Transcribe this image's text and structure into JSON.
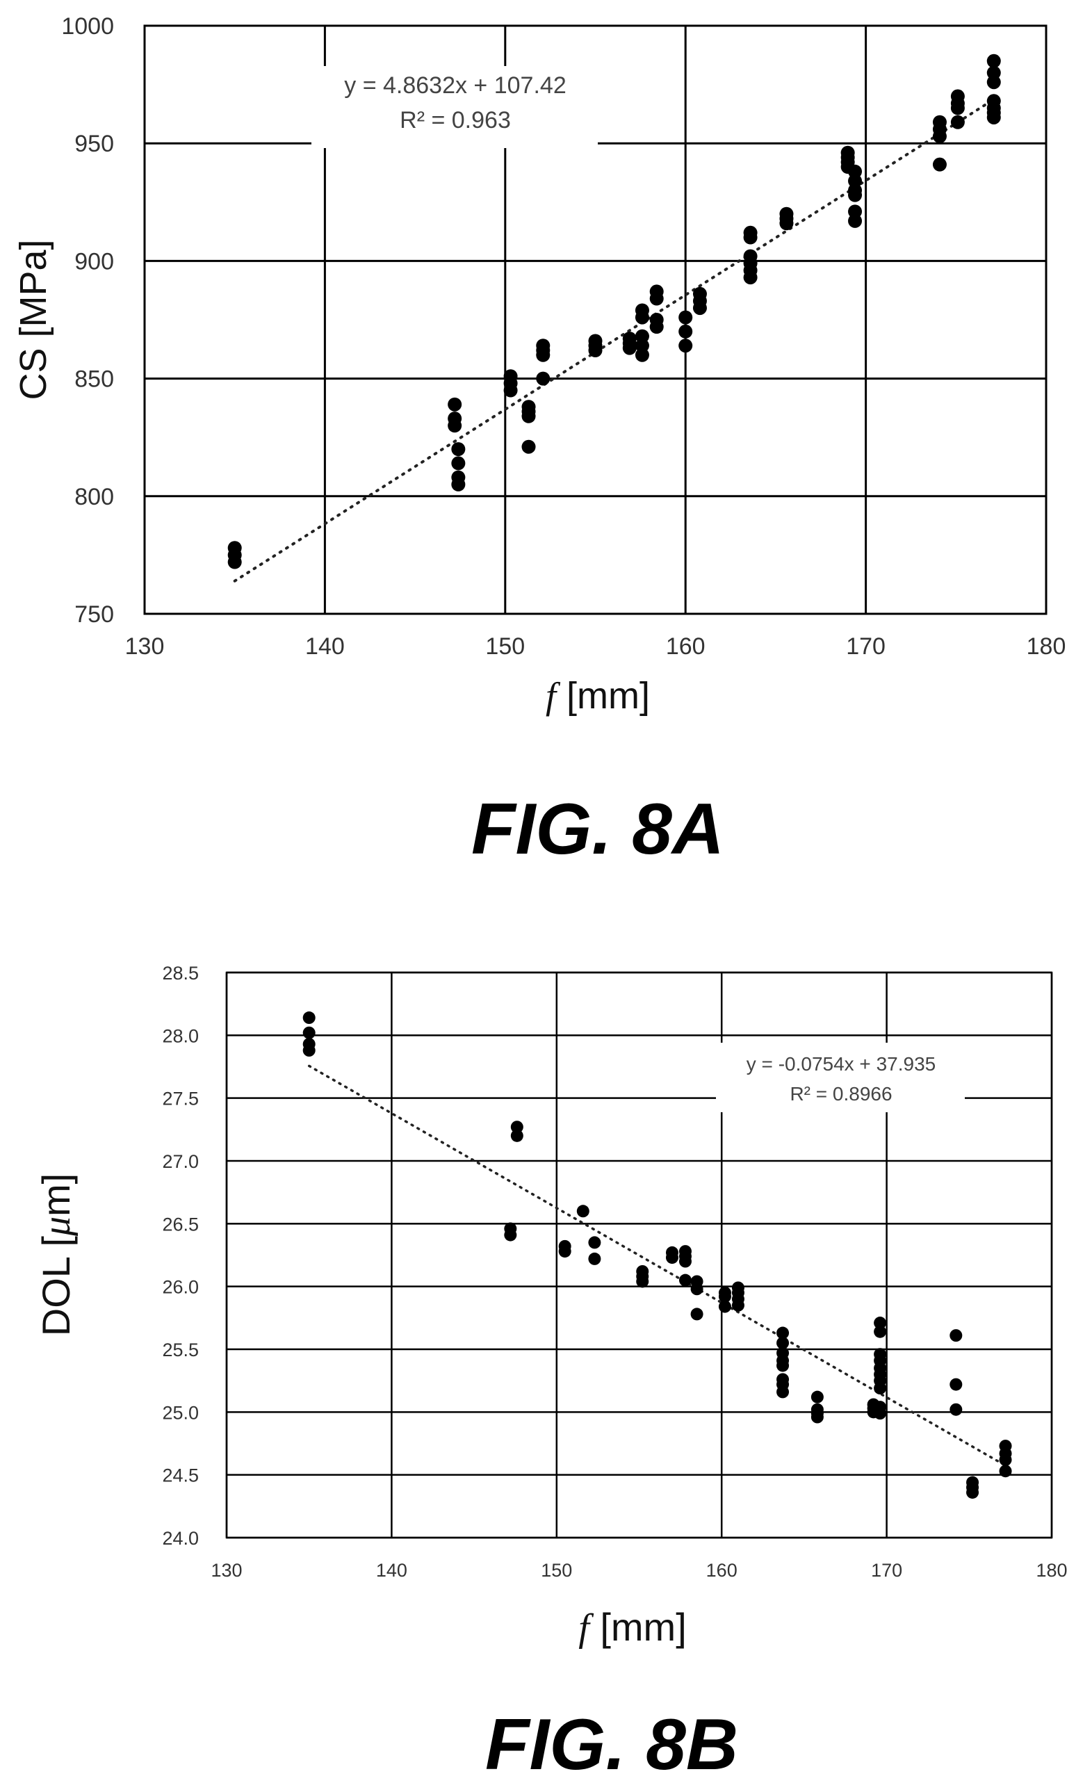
{
  "chart_data": [
    {
      "type": "scatter",
      "caption": "FIG. 8A",
      "xlabel_var": "f",
      "xlabel_unit": " [mm]",
      "ylabel": "CS [MPa]",
      "xlim": [
        130,
        180
      ],
      "ylim": [
        750,
        1000
      ],
      "xticks": [
        130,
        140,
        150,
        160,
        170,
        180
      ],
      "yticks": [
        750,
        800,
        850,
        900,
        950,
        1000
      ],
      "grid": true,
      "trendline": {
        "style": "dotted",
        "slope": 4.8632,
        "intercept": 107.42,
        "x_range": [
          135,
          177
        ],
        "equation": "y = 4.8632x + 107.42",
        "r2": "R² = 0.963"
      },
      "points": [
        [
          135,
          778
        ],
        [
          135,
          775
        ],
        [
          135,
          772
        ],
        [
          147.2,
          839
        ],
        [
          147.2,
          833
        ],
        [
          147.2,
          830
        ],
        [
          147.4,
          820
        ],
        [
          147.4,
          814
        ],
        [
          147.4,
          808
        ],
        [
          147.4,
          805
        ],
        [
          150.3,
          851
        ],
        [
          150.3,
          848
        ],
        [
          150.3,
          845
        ],
        [
          151.3,
          838
        ],
        [
          151.3,
          836
        ],
        [
          151.3,
          834
        ],
        [
          151.3,
          821
        ],
        [
          152.1,
          864
        ],
        [
          152.1,
          862
        ],
        [
          152.1,
          860
        ],
        [
          152.1,
          850
        ],
        [
          155,
          866
        ],
        [
          155,
          864
        ],
        [
          155,
          862
        ],
        [
          156.9,
          867
        ],
        [
          156.9,
          865
        ],
        [
          156.9,
          863
        ],
        [
          157.6,
          879
        ],
        [
          157.6,
          876
        ],
        [
          157.6,
          868
        ],
        [
          157.6,
          864
        ],
        [
          157.6,
          860
        ],
        [
          158.4,
          887
        ],
        [
          158.4,
          884
        ],
        [
          158.4,
          875
        ],
        [
          158.4,
          872
        ],
        [
          160,
          876
        ],
        [
          160,
          870
        ],
        [
          160,
          864
        ],
        [
          160.8,
          886
        ],
        [
          160.8,
          883
        ],
        [
          160.8,
          880
        ],
        [
          163.6,
          912
        ],
        [
          163.6,
          910
        ],
        [
          163.6,
          902
        ],
        [
          163.6,
          899
        ],
        [
          163.6,
          896
        ],
        [
          163.6,
          893
        ],
        [
          165.6,
          920
        ],
        [
          165.6,
          918
        ],
        [
          165.6,
          916
        ],
        [
          169,
          946
        ],
        [
          169,
          944
        ],
        [
          169,
          942
        ],
        [
          169,
          940
        ],
        [
          169.4,
          938
        ],
        [
          169.4,
          934
        ],
        [
          169.4,
          930
        ],
        [
          169.4,
          928
        ],
        [
          169.4,
          921
        ],
        [
          169.4,
          917
        ],
        [
          174.1,
          959
        ],
        [
          174.1,
          956
        ],
        [
          174.1,
          953
        ],
        [
          174.1,
          941
        ],
        [
          175.1,
          970
        ],
        [
          175.1,
          967
        ],
        [
          175.1,
          965
        ],
        [
          175.1,
          959
        ],
        [
          177.1,
          985
        ],
        [
          177.1,
          980
        ],
        [
          177.1,
          976
        ],
        [
          177.1,
          968
        ],
        [
          177.1,
          965
        ],
        [
          177.1,
          963
        ],
        [
          177.1,
          961
        ]
      ]
    },
    {
      "type": "scatter",
      "caption": "FIG. 8B",
      "xlabel_var": "f",
      "xlabel_unit": " [mm]",
      "ylabel_pre": "DOL [",
      "ylabel_var": "μ",
      "ylabel_post": "m]",
      "xlim": [
        130,
        180
      ],
      "ylim": [
        24.0,
        28.5
      ],
      "xticks": [
        130,
        140,
        150,
        160,
        170,
        180
      ],
      "yticks": [
        "24.0",
        "24.5",
        "25.0",
        "25.5",
        "26.0",
        "26.5",
        "27.0",
        "27.5",
        "28.0",
        "28.5"
      ],
      "grid": true,
      "trendline": {
        "style": "dotted",
        "slope": -0.0754,
        "intercept": 37.935,
        "x_range": [
          135,
          177
        ],
        "equation": "y = -0.0754x + 37.935",
        "r2": "R² = 0.8966"
      },
      "points": [
        [
          135,
          28.14
        ],
        [
          135,
          28.02
        ],
        [
          135,
          27.93
        ],
        [
          135,
          27.88
        ],
        [
          147.2,
          26.46
        ],
        [
          147.2,
          26.41
        ],
        [
          147.6,
          27.27
        ],
        [
          147.6,
          27.2
        ],
        [
          150.5,
          26.32
        ],
        [
          150.5,
          26.28
        ],
        [
          151.6,
          26.6
        ],
        [
          152.3,
          26.35
        ],
        [
          152.3,
          26.22
        ],
        [
          155.2,
          26.12
        ],
        [
          155.2,
          26.08
        ],
        [
          155.2,
          26.04
        ],
        [
          157,
          26.27
        ],
        [
          157,
          26.23
        ],
        [
          157.8,
          26.28
        ],
        [
          157.8,
          26.24
        ],
        [
          157.8,
          26.2
        ],
        [
          157.8,
          26.05
        ],
        [
          158.5,
          26.04
        ],
        [
          158.5,
          25.98
        ],
        [
          158.5,
          25.78
        ],
        [
          160.2,
          25.95
        ],
        [
          160.2,
          25.92
        ],
        [
          160.2,
          25.84
        ],
        [
          161,
          25.99
        ],
        [
          161,
          25.95
        ],
        [
          161,
          25.9
        ],
        [
          161,
          25.85
        ],
        [
          163.7,
          25.63
        ],
        [
          163.7,
          25.55
        ],
        [
          163.7,
          25.47
        ],
        [
          163.7,
          25.41
        ],
        [
          163.7,
          25.37
        ],
        [
          163.7,
          25.26
        ],
        [
          163.7,
          25.22
        ],
        [
          163.7,
          25.16
        ],
        [
          165.8,
          25.12
        ],
        [
          165.8,
          25.02
        ],
        [
          165.8,
          24.99
        ],
        [
          165.8,
          24.96
        ],
        [
          169.2,
          25.06
        ],
        [
          169.2,
          25.03
        ],
        [
          169.2,
          25.0
        ],
        [
          169.6,
          25.71
        ],
        [
          169.6,
          25.64
        ],
        [
          169.6,
          25.46
        ],
        [
          169.6,
          25.41
        ],
        [
          169.6,
          25.35
        ],
        [
          169.6,
          25.3
        ],
        [
          169.6,
          25.25
        ],
        [
          169.6,
          25.19
        ],
        [
          169.6,
          25.04
        ],
        [
          169.6,
          24.99
        ],
        [
          174.2,
          25.61
        ],
        [
          174.2,
          25.22
        ],
        [
          174.2,
          25.02
        ],
        [
          175.2,
          24.44
        ],
        [
          175.2,
          24.4
        ],
        [
          175.2,
          24.36
        ],
        [
          177.2,
          24.73
        ],
        [
          177.2,
          24.67
        ],
        [
          177.2,
          24.62
        ],
        [
          177.2,
          24.53
        ]
      ]
    }
  ]
}
